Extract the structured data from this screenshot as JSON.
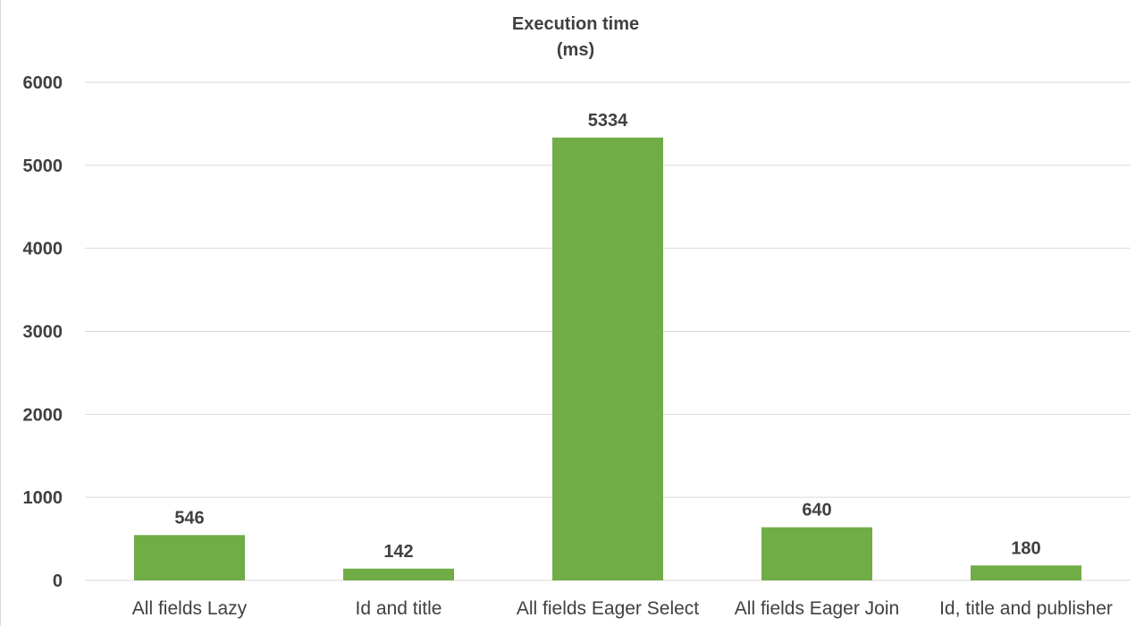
{
  "chart_data": {
    "type": "bar",
    "title": "Execution time",
    "subtitle": "(ms)",
    "categories": [
      "All fields Lazy",
      "Id and title",
      "All fields Eager Select",
      "All fields Eager Join",
      "Id, title and publisher"
    ],
    "values": [
      546,
      142,
      5334,
      640,
      180
    ],
    "data_labels": [
      "546",
      "142",
      "5334",
      "640",
      "180"
    ],
    "yticks": [
      0,
      1000,
      2000,
      3000,
      4000,
      5000,
      6000
    ],
    "ytick_labels": [
      "0",
      "1000",
      "2000",
      "3000",
      "4000",
      "5000",
      "6000"
    ],
    "ylim": [
      0,
      6000
    ],
    "xlabel": "",
    "ylabel": "",
    "grid": true,
    "legend": "none",
    "bar_color": "#70ad47",
    "grid_color": "#d9d9d9",
    "text_color": "#404040"
  }
}
